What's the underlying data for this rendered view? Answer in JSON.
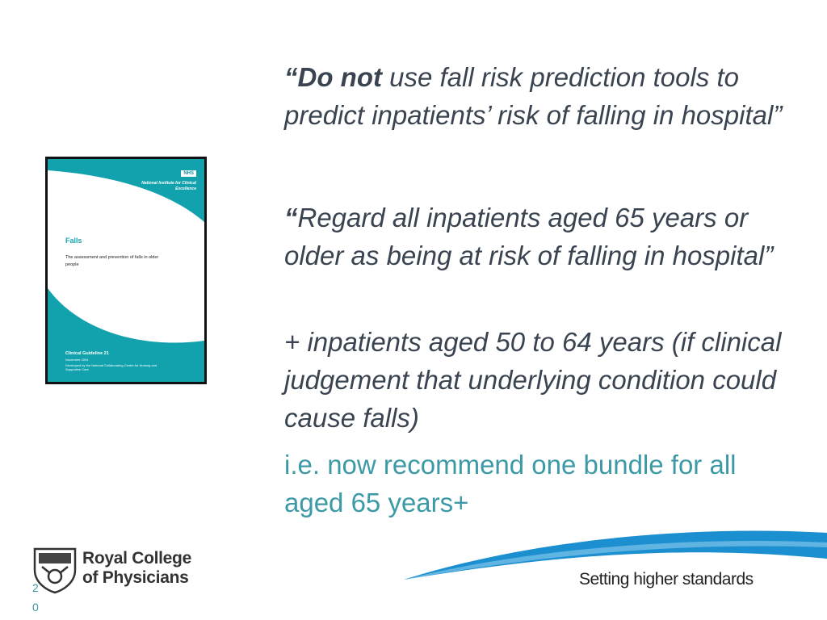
{
  "cover": {
    "nhs": "NHS",
    "institute": "National Institute for Clinical Excellence",
    "title": "Falls",
    "subtitle": "The assessment and prevention of falls in older people",
    "guideline": "Clinical Guideline 21",
    "date": "November 2004",
    "developed_by": "Developed by the National Collaborating Centre for Nursing and Supportive Care"
  },
  "quote1": {
    "open": "“",
    "bold": "Do not",
    "rest": " use fall risk prediction tools to predict inpatients’ risk of falling in hospital”"
  },
  "quote2": {
    "open": "“",
    "rest": "Regard all inpatients aged 65 years or older as being at risk of falling in hospital”"
  },
  "quote3": "+ inpatients aged 50 to 64 years (if clinical judgement that underlying condition could cause falls)",
  "quote4": "i.e. now recommend one bundle for all aged 65 years+",
  "footer": {
    "org_line1": "Royal College",
    "org_line2": "of Physicians",
    "tagline": "Setting higher standards",
    "page_number": "20"
  },
  "colors": {
    "accent": "#3c9aa6",
    "cover_teal": "#1aa6b0",
    "swoosh_blue": "#1b8fd0"
  }
}
